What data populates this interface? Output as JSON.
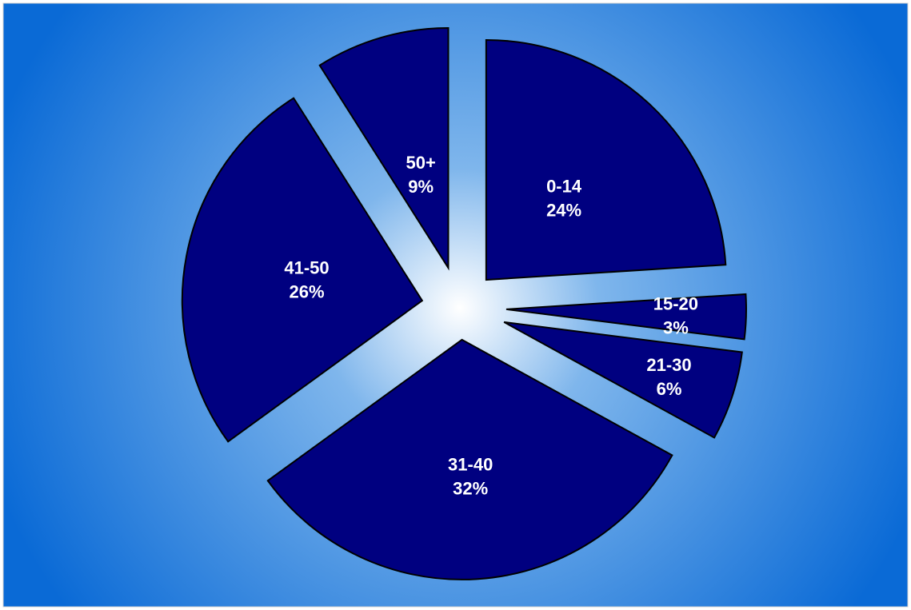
{
  "chart_data": {
    "type": "pie",
    "title": "",
    "slice_color": "#000080",
    "label_color": "#ffffff",
    "background": {
      "edge_color": "#0a6ad6",
      "center_color": "#ffffff"
    },
    "exploded": true,
    "start": "12 o'clock, clockwise",
    "slices": [
      {
        "label": "0-14",
        "percent_label": "24%",
        "value": 24
      },
      {
        "label": "15-20",
        "percent_label": "3%",
        "value": 3
      },
      {
        "label": "21-30",
        "percent_label": "6%",
        "value": 6
      },
      {
        "label": "31-40",
        "percent_label": "32%",
        "value": 32
      },
      {
        "label": "41-50",
        "percent_label": "26%",
        "value": 26
      },
      {
        "label": "50+",
        "percent_label": "9%",
        "value": 9
      }
    ]
  }
}
